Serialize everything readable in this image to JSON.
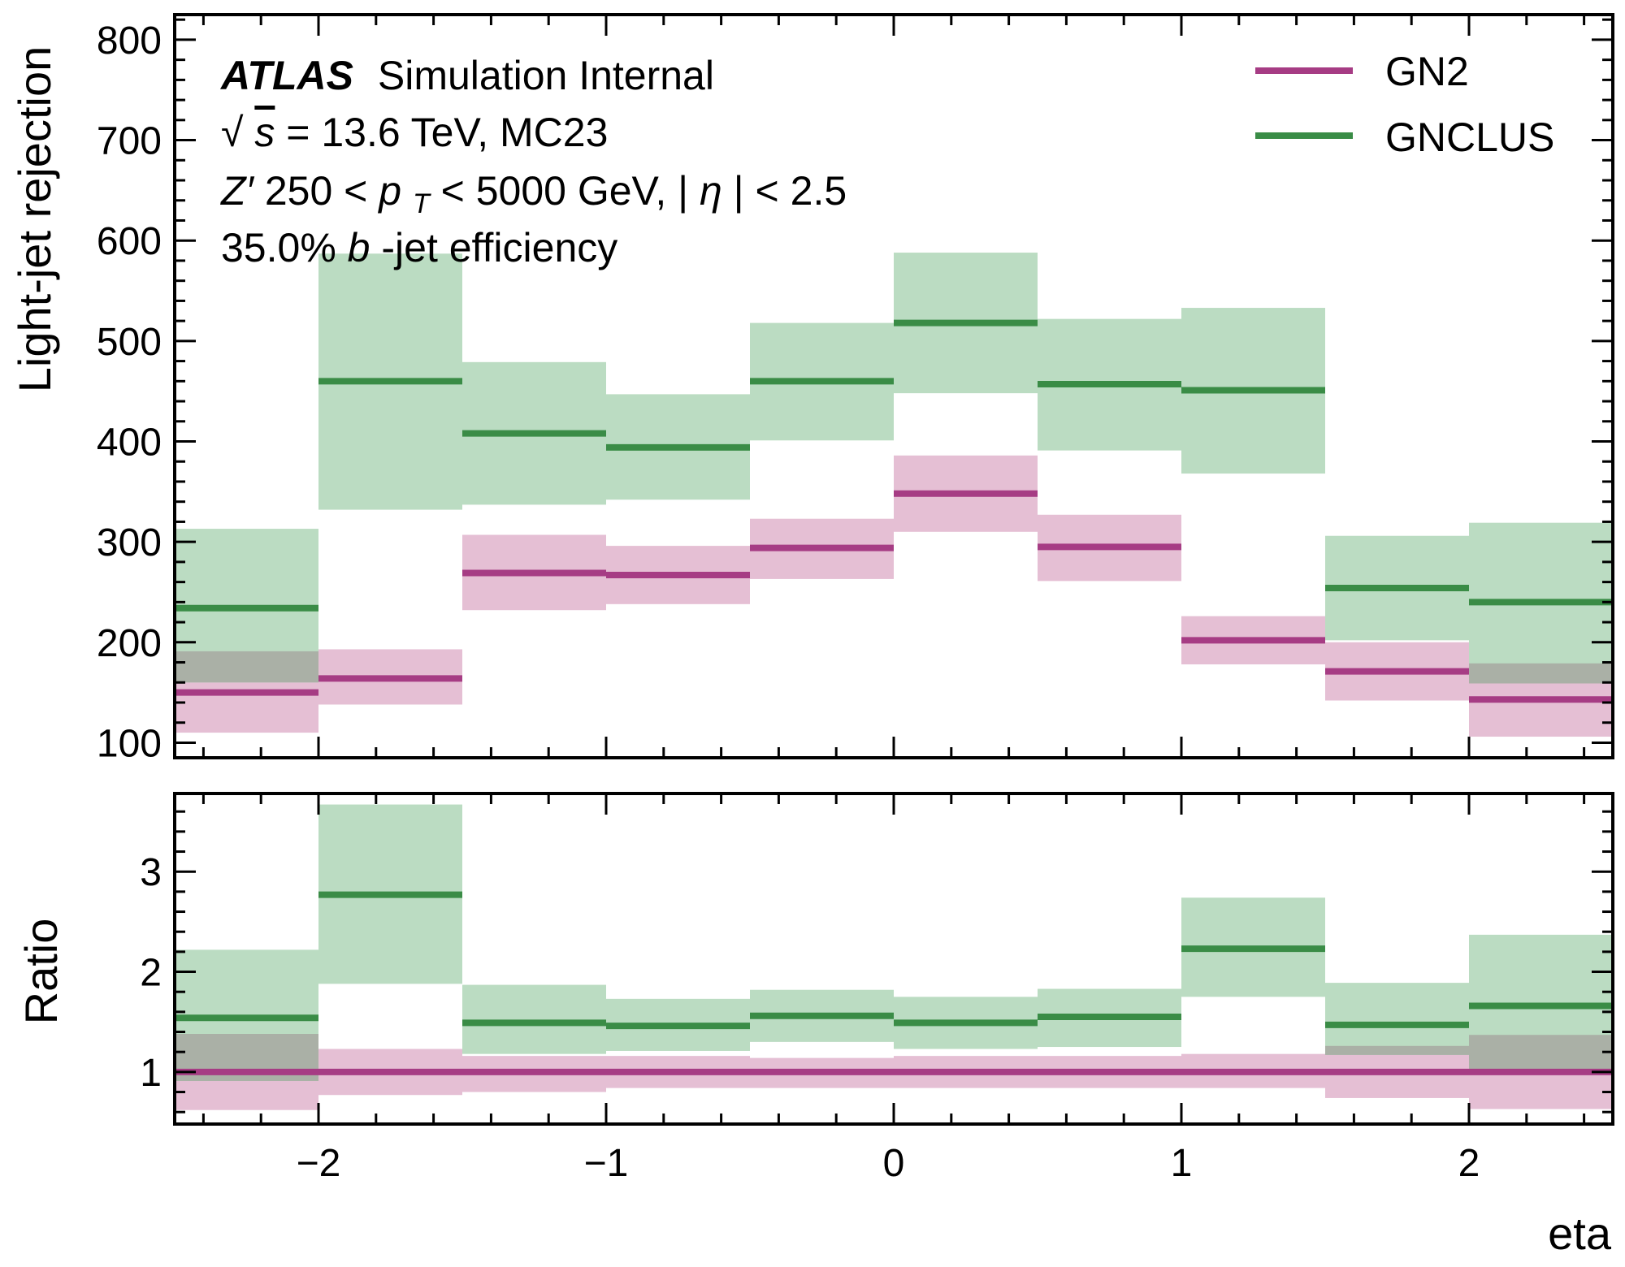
{
  "annotations": {
    "experiment": "ATLAS",
    "status": "Simulation Internal",
    "energy_sqrt": "√",
    "energy_s": "s",
    "energy_rest": " = 13.6 TeV, MC23",
    "selection_z": "Z′",
    "selection_mid": " 250 < ",
    "selection_p": "p",
    "selection_sub": "T",
    "selection_end": " < 5000 GeV, |",
    "selection_eta": "η",
    "selection_tail": "| < 2.5",
    "wp_pre": "35.0% ",
    "wp_b": "b",
    "wp_post": "-jet efficiency"
  },
  "chart_data": [
    {
      "type": "line",
      "style": "step histogram with uncertainty bands",
      "panel": "main",
      "xlabel": "",
      "ylabel": "Light-jet rejection",
      "xlim": [
        -2.5,
        2.5
      ],
      "ylim": [
        85,
        825
      ],
      "yticks": [
        100,
        200,
        300,
        400,
        500,
        600,
        700,
        800
      ],
      "bin_edges": [
        -2.5,
        -2.0,
        -1.5,
        -1.0,
        -0.5,
        0.0,
        0.5,
        1.0,
        1.5,
        2.0,
        2.5
      ],
      "legend_position": "top-right",
      "series": [
        {
          "name": "GN2",
          "color": "#a63c84",
          "band_color": "#e5bfd4",
          "values": [
            150,
            164,
            269,
            267,
            294,
            348,
            295,
            202,
            171,
            143
          ],
          "band_low": [
            110,
            138,
            232,
            238,
            263,
            310,
            261,
            178,
            142,
            106
          ],
          "band_high": [
            191,
            193,
            307,
            296,
            323,
            386,
            327,
            226,
            200,
            179
          ]
        },
        {
          "name": "GNCLUS",
          "color": "#3a8c46",
          "band_color": "#bbdcc2",
          "values": [
            234,
            460,
            408,
            394,
            460,
            518,
            457,
            451,
            254,
            240
          ],
          "band_low": [
            160,
            332,
            337,
            342,
            401,
            448,
            391,
            368,
            202,
            159
          ],
          "band_high": [
            313,
            587,
            479,
            447,
            518,
            588,
            522,
            533,
            306,
            319
          ]
        }
      ],
      "grey_overlap_color": "#aab0a6"
    },
    {
      "type": "line",
      "style": "step histogram with uncertainty bands",
      "panel": "ratio",
      "xlabel": "eta",
      "ylabel": "Ratio",
      "xlim": [
        -2.5,
        2.5
      ],
      "ylim": [
        0.48,
        3.78
      ],
      "xticks": [
        -2,
        -1,
        0,
        1,
        2
      ],
      "xtick_labels": [
        "−2",
        "−1",
        "0",
        "1",
        "2"
      ],
      "yticks": [
        1,
        2,
        3
      ],
      "bin_edges": [
        -2.5,
        -2.0,
        -1.5,
        -1.0,
        -0.5,
        0.0,
        0.5,
        1.0,
        1.5,
        2.0,
        2.5
      ],
      "series": [
        {
          "name": "GN2",
          "color": "#a63c84",
          "band_color": "#e5bfd4",
          "values": [
            1,
            1,
            1,
            1,
            1,
            1,
            1,
            1,
            1,
            1
          ],
          "band_low": [
            0.62,
            0.77,
            0.8,
            0.84,
            0.84,
            0.84,
            0.84,
            0.84,
            0.74,
            0.63
          ],
          "band_high": [
            1.38,
            1.23,
            1.16,
            1.16,
            1.14,
            1.16,
            1.16,
            1.18,
            1.26,
            1.37
          ]
        },
        {
          "name": "GNCLUS",
          "color": "#3a8c46",
          "band_color": "#bbdcc2",
          "values": [
            1.54,
            2.77,
            1.49,
            1.46,
            1.56,
            1.49,
            1.55,
            2.23,
            1.47,
            1.66
          ],
          "band_low": [
            0.91,
            1.88,
            1.18,
            1.21,
            1.3,
            1.23,
            1.25,
            1.75,
            1.17,
            1.0
          ],
          "band_high": [
            2.22,
            3.67,
            1.87,
            1.73,
            1.82,
            1.75,
            1.83,
            2.74,
            1.89,
            2.37
          ]
        }
      ]
    }
  ]
}
